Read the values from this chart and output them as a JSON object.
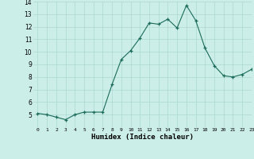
{
  "x": [
    0,
    1,
    2,
    3,
    4,
    5,
    6,
    7,
    8,
    9,
    10,
    11,
    12,
    13,
    14,
    15,
    16,
    17,
    18,
    19,
    20,
    21,
    22,
    23
  ],
  "y": [
    5.1,
    5.0,
    4.8,
    4.6,
    5.0,
    5.2,
    5.2,
    5.2,
    7.4,
    9.4,
    10.1,
    11.1,
    12.3,
    12.2,
    12.6,
    11.9,
    13.7,
    12.5,
    10.3,
    8.9,
    8.1,
    8.0,
    8.2,
    8.6
  ],
  "xlabel": "Humidex (Indice chaleur)",
  "ylim": [
    4,
    14
  ],
  "xlim": [
    -0.5,
    23
  ],
  "yticks": [
    5,
    6,
    7,
    8,
    9,
    10,
    11,
    12,
    13,
    14
  ],
  "xticks": [
    0,
    1,
    2,
    3,
    4,
    5,
    6,
    7,
    8,
    9,
    10,
    11,
    12,
    13,
    14,
    15,
    16,
    17,
    18,
    19,
    20,
    21,
    22,
    23
  ],
  "line_color": "#1a6b5a",
  "marker_color": "#1a6b5a",
  "bg_color": "#cceee8",
  "grid_color": "#aad8d0",
  "title": ""
}
